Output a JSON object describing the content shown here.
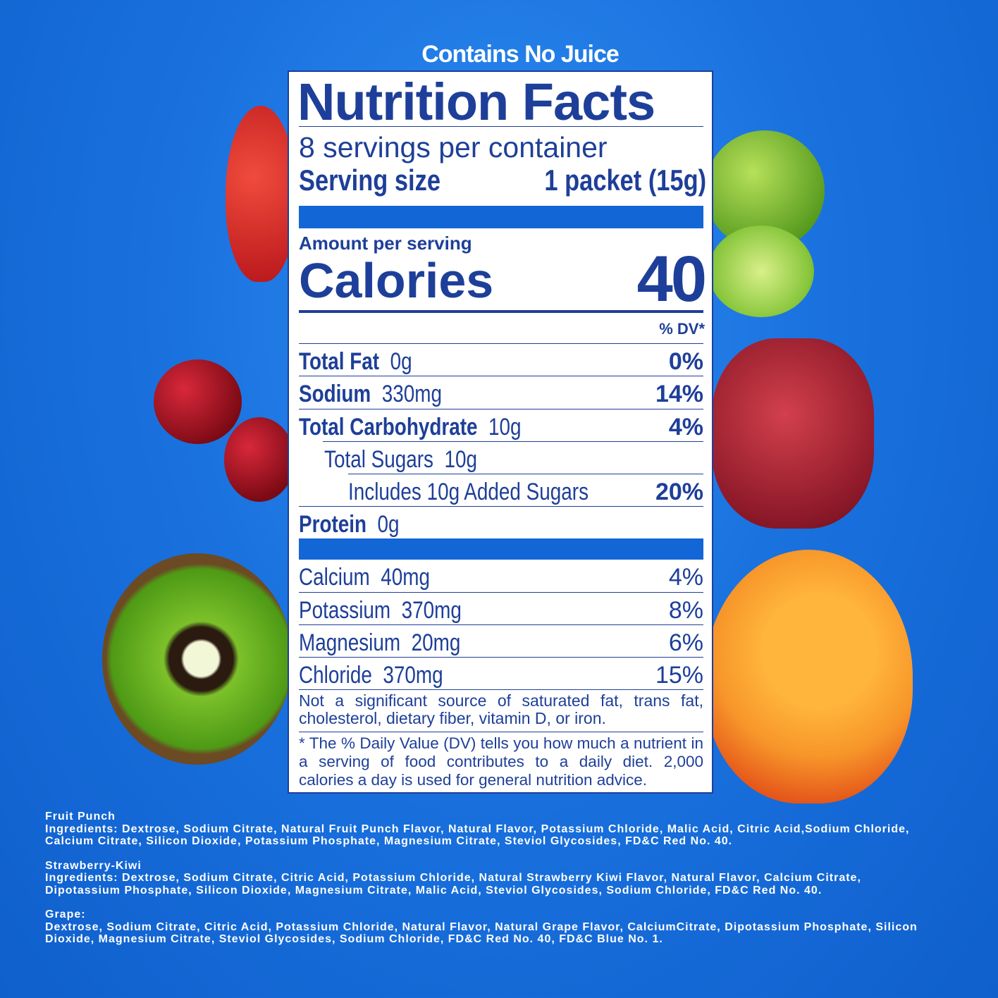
{
  "headline": "Contains No Juice",
  "label": {
    "title": "Nutrition Facts",
    "servings": "8 servings per container",
    "serving_size_label": "Serving size",
    "serving_size_value": "1 packet (15g)",
    "amount_per_serving": "Amount per serving",
    "calories_label": "Calories",
    "calories_value": "40",
    "dv_header": "% DV*",
    "nutrients": [
      {
        "name": "Total Fat",
        "amount": "0g",
        "dv": "0%"
      },
      {
        "name": "Sodium",
        "amount": "330mg",
        "dv": "14%"
      },
      {
        "name": "Total Carbohydrate",
        "amount": "10g",
        "dv": "4%"
      },
      {
        "name": "Total Sugars",
        "amount": "10g",
        "dv": ""
      },
      {
        "name": "Includes 10g Added Sugars",
        "amount": "",
        "dv": "20%"
      },
      {
        "name": "Protein",
        "amount": "0g",
        "dv": ""
      }
    ],
    "minerals": [
      {
        "name": "Calcium",
        "amount": "40mg",
        "dv": "4%"
      },
      {
        "name": "Potassium",
        "amount": "370mg",
        "dv": "8%"
      },
      {
        "name": "Magnesium",
        "amount": "20mg",
        "dv": "6%"
      },
      {
        "name": "Chloride",
        "amount": "370mg",
        "dv": "15%"
      }
    ],
    "not_significant": "Not a significant source of saturated fat, trans fat, cholesterol, dietary fiber, vitamin D, or iron.",
    "footnote": "* The % Daily Value (DV) tells you how much a nutrient in a serving of food contributes to a daily diet. 2,000 calories a day is used for general nutrition advice."
  },
  "ingredients": [
    {
      "flavor": "Fruit Punch",
      "text": "Ingredients:  Dextrose, Sodium Citrate, Natural Fruit Punch Flavor, Natural Flavor, Potassium Chloride, Malic Acid, Citric Acid,Sodium Chloride, Calcium Citrate, Silicon Dioxide, Potassium Phosphate, Magnesium Citrate, Steviol Glycosides, FD&C Red No. 40."
    },
    {
      "flavor": "Strawberry-Kiwi",
      "text": "Ingredients:  Dextrose, Sodium Citrate, Citric Acid, Potassium  Chloride, Natural Strawberry Kiwi Flavor, Natural Flavor, Calcium Citrate, Dipotassium Phosphate, Silicon Dioxide, Magnesium Citrate, Malic Acid, Steviol Glycosides, Sodium Chloride, FD&C Red No. 40."
    },
    {
      "flavor": "Grape:",
      "text": "Dextrose,   Sodium Citrate, Citric Acid, Potassium Chloride, Natural Flavor, Natural Grape Flavor, CalciumCitrate,   Dipotassium Phosphate, Silicon Dioxide, Magnesium Citrate, Steviol Glycosides, Sodium Chloride, FD&C Red No. 40, FD&C Blue No. 1."
    }
  ],
  "colors": {
    "background": "#1a72df",
    "label_text": "#1e3f99",
    "label_bar": "#1366d6"
  },
  "decorations": [
    "strawberry",
    "lime",
    "cherries",
    "grapes",
    "kiwi",
    "orange"
  ]
}
